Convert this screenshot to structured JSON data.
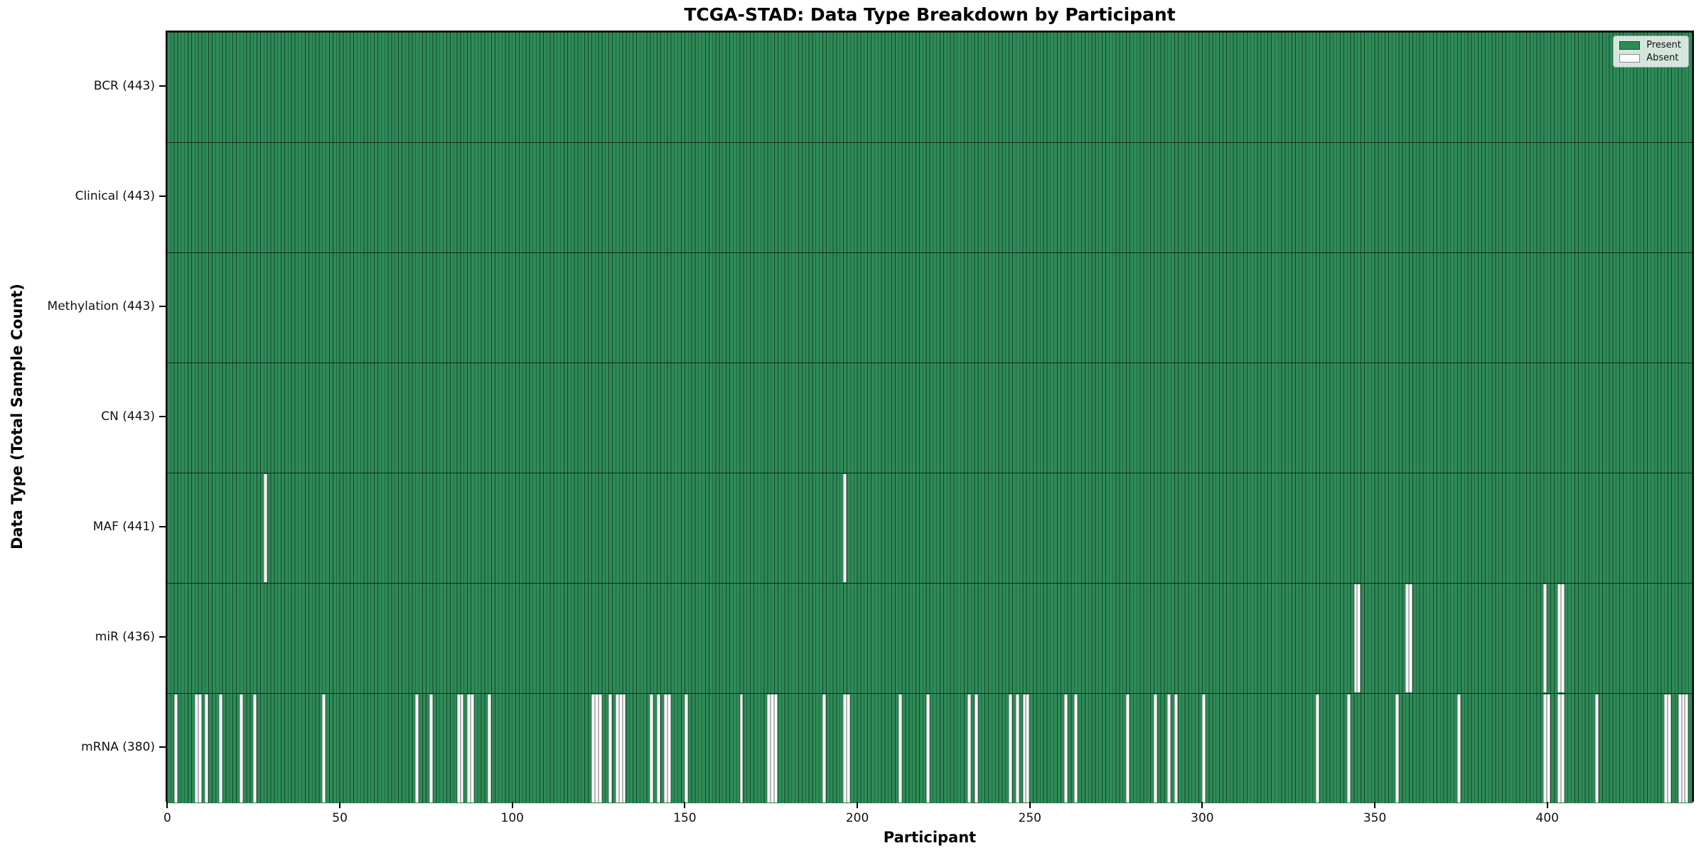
{
  "title": "TCGA-STAD: Data Type Breakdown by Participant",
  "colors": {
    "present": "#2e8b57",
    "absent": "#ffffff",
    "cell_edge": "rgba(0,0,0,0.5)",
    "plot_border": "#000000"
  },
  "chart_data": {
    "type": "heatmap",
    "title": "TCGA-STAD: Data Type Breakdown by Participant",
    "xlabel": "Participant",
    "ylabel": "Data Type (Total Sample Count)",
    "n_participants": 443,
    "x_ticks": [
      0,
      50,
      100,
      150,
      200,
      250,
      300,
      350,
      400
    ],
    "legend_position": "upper right",
    "grid": false,
    "legend": [
      {
        "label": "Present",
        "color": "#2e8b57"
      },
      {
        "label": "Absent",
        "color": "#ffffff"
      }
    ],
    "rows": [
      {
        "label": "BCR (443)",
        "name": "bcr",
        "count": 443,
        "absent": []
      },
      {
        "label": "Clinical (443)",
        "name": "clinical",
        "count": 443,
        "absent": []
      },
      {
        "label": "Methylation (443)",
        "name": "methylation",
        "count": 443,
        "absent": []
      },
      {
        "label": "CN (443)",
        "name": "cn",
        "count": 443,
        "absent": []
      },
      {
        "label": "MAF (441)",
        "name": "maf",
        "count": 441,
        "absent": [
          28,
          196
        ]
      },
      {
        "label": "miR (436)",
        "name": "mir",
        "count": 436,
        "absent": [
          344,
          345,
          359,
          360,
          399,
          403,
          404
        ]
      },
      {
        "label": "mRNA (380)",
        "name": "mrna",
        "count": 380,
        "absent": [
          2,
          8,
          9,
          11,
          15,
          21,
          25,
          45,
          72,
          76,
          84,
          85,
          87,
          88,
          93,
          123,
          124,
          125,
          128,
          130,
          131,
          132,
          140,
          142,
          144,
          145,
          150,
          166,
          174,
          175,
          176,
          190,
          196,
          197,
          212,
          220,
          232,
          234,
          244,
          246,
          248,
          249,
          260,
          263,
          278,
          286,
          290,
          292,
          300,
          333,
          342,
          356,
          374,
          399,
          400,
          403,
          404,
          414,
          434,
          435,
          438,
          439,
          440
        ]
      }
    ]
  }
}
